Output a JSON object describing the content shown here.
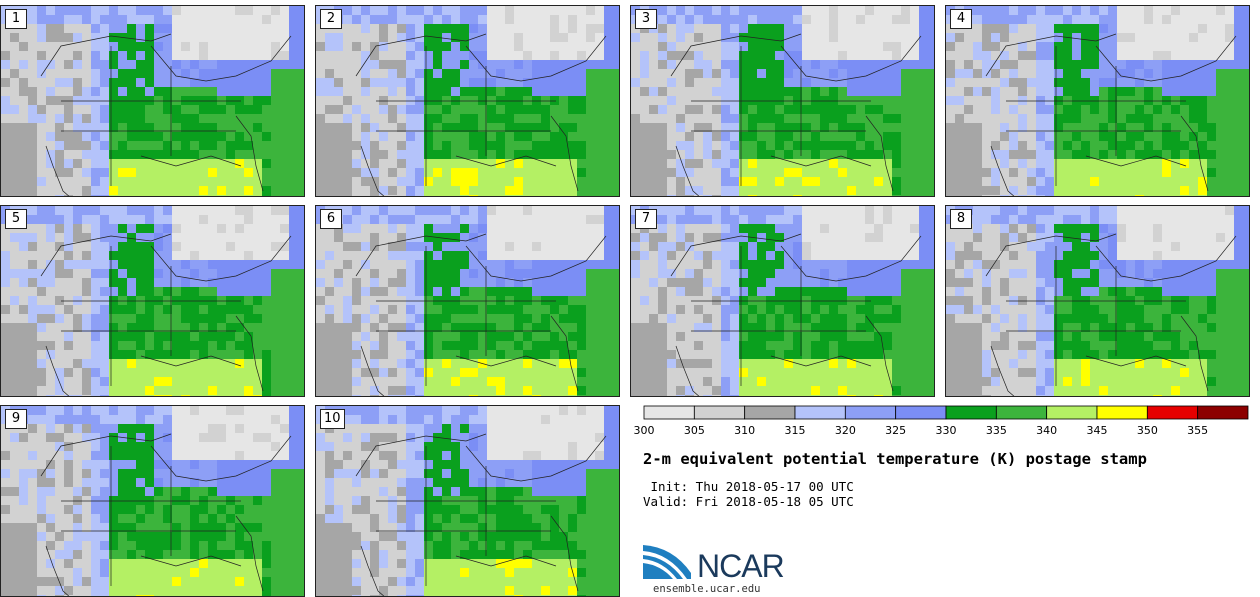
{
  "panels": [
    {
      "label": "1"
    },
    {
      "label": "2"
    },
    {
      "label": "3"
    },
    {
      "label": "4"
    },
    {
      "label": "5"
    },
    {
      "label": "6"
    },
    {
      "label": "7"
    },
    {
      "label": "8"
    },
    {
      "label": "9"
    },
    {
      "label": "10"
    }
  ],
  "colorbar": {
    "bins": [
      {
        "from": 300,
        "to": 305,
        "color": "#e6e6e6"
      },
      {
        "from": 305,
        "to": 310,
        "color": "#d2d2d2"
      },
      {
        "from": 310,
        "to": 315,
        "color": "#a6a6a6"
      },
      {
        "from": 315,
        "to": 320,
        "color": "#b4c3fa"
      },
      {
        "from": 320,
        "to": 325,
        "color": "#8d9ff6"
      },
      {
        "from": 325,
        "to": 330,
        "color": "#7b8ef5"
      },
      {
        "from": 330,
        "to": 335,
        "color": "#0aa01e"
      },
      {
        "from": 335,
        "to": 340,
        "color": "#3cb43c"
      },
      {
        "from": 340,
        "to": 345,
        "color": "#b4f064"
      },
      {
        "from": 345,
        "to": 350,
        "color": "#ffff00"
      },
      {
        "from": 350,
        "to": 355,
        "color": "#e60000"
      },
      {
        "from": 355,
        "to": 360,
        "color": "#8c0000"
      }
    ],
    "tick_labels": [
      "300",
      "305",
      "310",
      "315",
      "320",
      "325",
      "330",
      "335",
      "340",
      "345",
      "350",
      "355"
    ]
  },
  "title": "2-m equivalent potential temperature (K) postage stamp",
  "init": " Init: Thu 2018-05-17 00 UTC",
  "valid": "Valid: Fri 2018-05-18 05 UTC",
  "logo": {
    "word": "NCAR",
    "url": "ensemble.ucar.edu",
    "color": "#1b3a5c",
    "accent": "#1f7fc0"
  }
}
